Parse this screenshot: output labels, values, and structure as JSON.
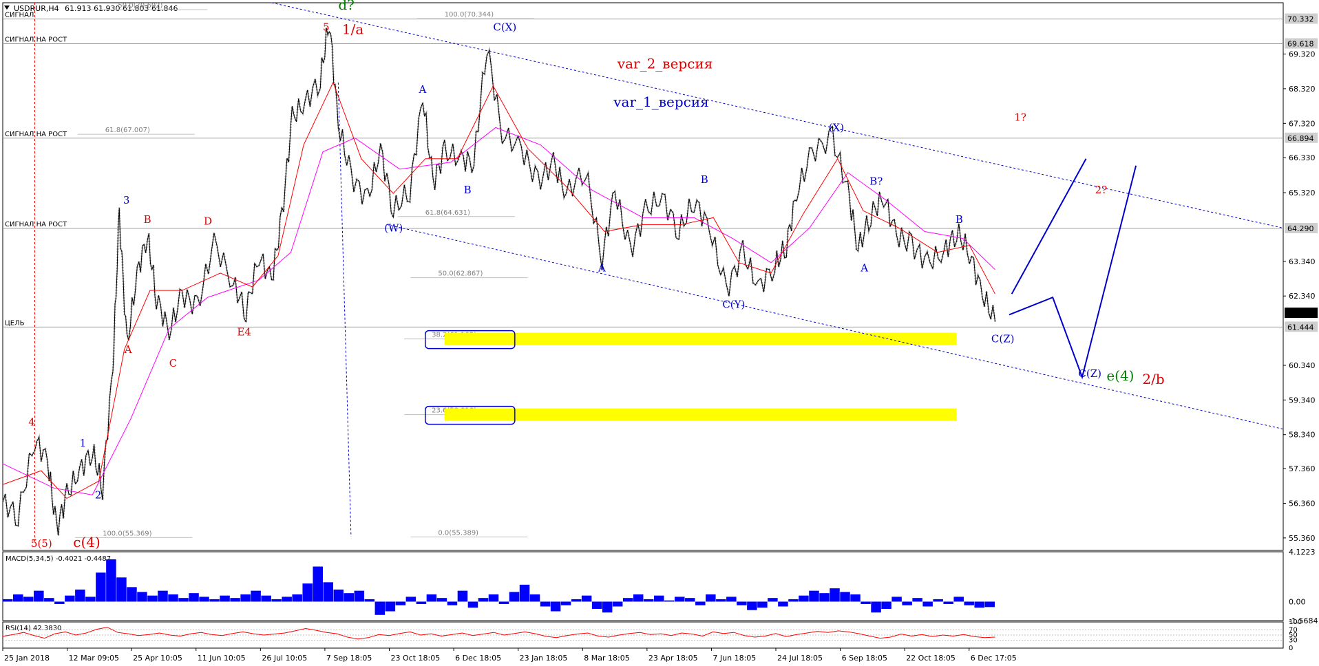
{
  "header": {
    "symbol": "USDRUR,H4",
    "ohlc": "61.913 61.930 61.803 61.846"
  },
  "colors": {
    "price": "#000000",
    "ma_fast": "#ff0000",
    "ma_slow": "#ff00ff",
    "ma_dots": "#b0b0b0",
    "wave_blue": "#0000cc",
    "wave_red": "#e00000",
    "wave_green": "#008000",
    "zone": "#ffff00",
    "macd": "#0000ff",
    "rsi": "#ff0000",
    "fib_grey": "#808080"
  },
  "chart_data": [
    {
      "type": "line",
      "panel": "main",
      "ylim": [
        55.0,
        70.8
      ],
      "x_ticks": [
        "25 Jan 2018",
        "12 Mar 09:05",
        "25 Apr 10:05",
        "11 Jun 10:05",
        "26 Jul 10:05",
        "7 Sep 18:05",
        "23 Oct 18:05",
        "6 Dec 18:05",
        "23 Jan 18:05",
        "8 Mar 18:05",
        "23 Apr 18:05",
        "7 Jun 18:05",
        "24 Jul 18:05",
        "6 Sep 18:05",
        "22 Oct 18:05",
        "6 Dec 17:05"
      ],
      "y_ticks": [
        "69.320",
        "68.320",
        "67.320",
        "66.330",
        "65.320",
        "63.340",
        "62.340",
        "60.340",
        "59.340",
        "58.340",
        "57.360",
        "56.360",
        "55.360"
      ],
      "price_labels": [
        {
          "value": 70.332,
          "text": "70.332",
          "style": "grey"
        },
        {
          "value": 69.618,
          "text": "69.618",
          "style": "grey"
        },
        {
          "value": 66.894,
          "text": "66.894",
          "style": "grey"
        },
        {
          "value": 64.29,
          "text": "64.290",
          "style": "grey"
        },
        {
          "value": 61.846,
          "text": "61.846",
          "style": "black"
        },
        {
          "value": 61.444,
          "text": "61.444",
          "style": "grey"
        }
      ],
      "horizontal_levels": [
        {
          "value": 70.332,
          "label": "СИГНАЛ"
        },
        {
          "value": 69.618,
          "label": "СИГНАЛ НА РОСТ"
        },
        {
          "value": 66.894,
          "label": "СИГНАЛ НА РОСТ"
        },
        {
          "value": 64.29,
          "label": "СИГНАЛ НА РОСТ"
        },
        {
          "value": 61.444,
          "label": "ЦЕЛЬ"
        }
      ],
      "fib_labels": [
        {
          "text": "50.0(70.602)",
          "value": 70.602
        },
        {
          "text": "100.0(70.344)",
          "value": 70.344
        },
        {
          "text": "61.8(67.007)",
          "value": 67.007
        },
        {
          "text": "61.8(64.631)",
          "value": 64.631
        },
        {
          "text": "50.0(62.867)",
          "value": 62.867
        },
        {
          "text": "38.2(61.102)",
          "value": 61.102
        },
        {
          "text": "23.6(58.918)",
          "value": 58.918
        },
        {
          "text": "100.0(55.369)",
          "value": 55.369
        },
        {
          "text": "0.0(55.389)",
          "value": 55.389
        }
      ],
      "price_series": [
        {
          "t": 0.0,
          "v": 56.4
        },
        {
          "t": 0.012,
          "v": 56.0
        },
        {
          "t": 0.025,
          "v": 58.2
        },
        {
          "t": 0.035,
          "v": 57.6
        },
        {
          "t": 0.042,
          "v": 55.6
        },
        {
          "t": 0.05,
          "v": 56.6
        },
        {
          "t": 0.06,
          "v": 57.3
        },
        {
          "t": 0.07,
          "v": 57.9
        },
        {
          "t": 0.078,
          "v": 56.8
        },
        {
          "t": 0.086,
          "v": 60.3
        },
        {
          "t": 0.091,
          "v": 64.7
        },
        {
          "t": 0.097,
          "v": 60.9
        },
        {
          "t": 0.105,
          "v": 63.0
        },
        {
          "t": 0.113,
          "v": 64.1
        },
        {
          "t": 0.12,
          "v": 62.3
        },
        {
          "t": 0.13,
          "v": 61.3
        },
        {
          "t": 0.14,
          "v": 62.4
        },
        {
          "t": 0.152,
          "v": 62.0
        },
        {
          "t": 0.165,
          "v": 63.9
        },
        {
          "t": 0.18,
          "v": 62.7
        },
        {
          "t": 0.19,
          "v": 61.9
        },
        {
          "t": 0.2,
          "v": 63.5
        },
        {
          "t": 0.21,
          "v": 62.8
        },
        {
          "t": 0.218,
          "v": 64.6
        },
        {
          "t": 0.226,
          "v": 67.5
        },
        {
          "t": 0.236,
          "v": 67.9
        },
        {
          "t": 0.248,
          "v": 68.6
        },
        {
          "t": 0.255,
          "v": 70.3
        },
        {
          "t": 0.262,
          "v": 67.3
        },
        {
          "t": 0.272,
          "v": 65.8
        },
        {
          "t": 0.285,
          "v": 65.1
        },
        {
          "t": 0.295,
          "v": 66.6
        },
        {
          "t": 0.305,
          "v": 64.8
        },
        {
          "t": 0.318,
          "v": 65.4
        },
        {
          "t": 0.328,
          "v": 68.1
        },
        {
          "t": 0.336,
          "v": 65.6
        },
        {
          "t": 0.345,
          "v": 66.5
        },
        {
          "t": 0.358,
          "v": 66.3
        },
        {
          "t": 0.368,
          "v": 66.2
        },
        {
          "t": 0.378,
          "v": 69.6
        },
        {
          "t": 0.39,
          "v": 67.0
        },
        {
          "t": 0.405,
          "v": 66.6
        },
        {
          "t": 0.418,
          "v": 65.6
        },
        {
          "t": 0.43,
          "v": 66.2
        },
        {
          "t": 0.44,
          "v": 65.3
        },
        {
          "t": 0.455,
          "v": 66.0
        },
        {
          "t": 0.468,
          "v": 63.4
        },
        {
          "t": 0.478,
          "v": 65.4
        },
        {
          "t": 0.49,
          "v": 63.6
        },
        {
          "t": 0.502,
          "v": 64.8
        },
        {
          "t": 0.515,
          "v": 65.2
        },
        {
          "t": 0.528,
          "v": 64.2
        },
        {
          "t": 0.54,
          "v": 65.1
        },
        {
          "t": 0.552,
          "v": 64.3
        },
        {
          "t": 0.565,
          "v": 62.5
        },
        {
          "t": 0.578,
          "v": 63.6
        },
        {
          "t": 0.59,
          "v": 62.6
        },
        {
          "t": 0.603,
          "v": 63.2
        },
        {
          "t": 0.612,
          "v": 63.8
        },
        {
          "t": 0.62,
          "v": 65.3
        },
        {
          "t": 0.632,
          "v": 66.5
        },
        {
          "t": 0.648,
          "v": 66.9
        },
        {
          "t": 0.66,
          "v": 65.4
        },
        {
          "t": 0.668,
          "v": 63.7
        },
        {
          "t": 0.678,
          "v": 64.7
        },
        {
          "t": 0.688,
          "v": 65.2
        },
        {
          "t": 0.698,
          "v": 64.1
        },
        {
          "t": 0.71,
          "v": 63.8
        },
        {
          "t": 0.722,
          "v": 63.3
        },
        {
          "t": 0.735,
          "v": 63.6
        },
        {
          "t": 0.745,
          "v": 64.2
        },
        {
          "t": 0.755,
          "v": 63.6
        },
        {
          "t": 0.765,
          "v": 62.4
        },
        {
          "t": 0.775,
          "v": 61.6
        }
      ],
      "ma_fast": [
        {
          "t": 0.0,
          "v": 56.9
        },
        {
          "t": 0.03,
          "v": 57.3
        },
        {
          "t": 0.05,
          "v": 56.5
        },
        {
          "t": 0.075,
          "v": 57.0
        },
        {
          "t": 0.095,
          "v": 60.8
        },
        {
          "t": 0.115,
          "v": 62.5
        },
        {
          "t": 0.14,
          "v": 62.5
        },
        {
          "t": 0.17,
          "v": 63.0
        },
        {
          "t": 0.195,
          "v": 62.6
        },
        {
          "t": 0.215,
          "v": 63.5
        },
        {
          "t": 0.235,
          "v": 66.7
        },
        {
          "t": 0.258,
          "v": 68.5
        },
        {
          "t": 0.28,
          "v": 66.3
        },
        {
          "t": 0.305,
          "v": 65.3
        },
        {
          "t": 0.33,
          "v": 66.3
        },
        {
          "t": 0.355,
          "v": 66.3
        },
        {
          "t": 0.383,
          "v": 68.4
        },
        {
          "t": 0.41,
          "v": 66.6
        },
        {
          "t": 0.44,
          "v": 65.5
        },
        {
          "t": 0.47,
          "v": 64.2
        },
        {
          "t": 0.5,
          "v": 64.4
        },
        {
          "t": 0.53,
          "v": 64.4
        },
        {
          "t": 0.555,
          "v": 64.6
        },
        {
          "t": 0.575,
          "v": 63.3
        },
        {
          "t": 0.6,
          "v": 63.0
        },
        {
          "t": 0.625,
          "v": 64.7
        },
        {
          "t": 0.652,
          "v": 66.3
        },
        {
          "t": 0.672,
          "v": 64.8
        },
        {
          "t": 0.7,
          "v": 64.3
        },
        {
          "t": 0.73,
          "v": 63.6
        },
        {
          "t": 0.755,
          "v": 63.8
        },
        {
          "t": 0.775,
          "v": 62.4
        }
      ],
      "ma_slow": [
        {
          "t": 0.0,
          "v": 57.5
        },
        {
          "t": 0.04,
          "v": 56.8
        },
        {
          "t": 0.07,
          "v": 56.6
        },
        {
          "t": 0.1,
          "v": 58.8
        },
        {
          "t": 0.13,
          "v": 61.4
        },
        {
          "t": 0.16,
          "v": 62.3
        },
        {
          "t": 0.2,
          "v": 62.8
        },
        {
          "t": 0.225,
          "v": 63.6
        },
        {
          "t": 0.25,
          "v": 66.5
        },
        {
          "t": 0.275,
          "v": 66.9
        },
        {
          "t": 0.31,
          "v": 66.0
        },
        {
          "t": 0.35,
          "v": 66.2
        },
        {
          "t": 0.385,
          "v": 67.2
        },
        {
          "t": 0.42,
          "v": 66.7
        },
        {
          "t": 0.46,
          "v": 65.4
        },
        {
          "t": 0.5,
          "v": 64.6
        },
        {
          "t": 0.54,
          "v": 64.6
        },
        {
          "t": 0.57,
          "v": 64.0
        },
        {
          "t": 0.6,
          "v": 63.3
        },
        {
          "t": 0.63,
          "v": 64.3
        },
        {
          "t": 0.66,
          "v": 65.9
        },
        {
          "t": 0.69,
          "v": 65.1
        },
        {
          "t": 0.72,
          "v": 64.2
        },
        {
          "t": 0.75,
          "v": 64.0
        },
        {
          "t": 0.775,
          "v": 63.1
        }
      ],
      "wave_labels": [
        {
          "text": "d?",
          "t": 0.262,
          "v": 70.6,
          "color": "green",
          "size": "big"
        },
        {
          "text": "5",
          "t": 0.25,
          "v": 70.0,
          "color": "red",
          "size": "small"
        },
        {
          "text": "1/a",
          "t": 0.265,
          "v": 69.9,
          "color": "red",
          "size": "big"
        },
        {
          "text": "C(X)",
          "t": 0.383,
          "v": 70.0,
          "color": "blue",
          "size": "small"
        },
        {
          "text": "var_2_версия",
          "t": 0.48,
          "v": 68.9,
          "color": "red",
          "size": "big"
        },
        {
          "text": "var_1_версия",
          "t": 0.477,
          "v": 67.8,
          "color": "blue",
          "size": "big"
        },
        {
          "text": "(X)",
          "t": 0.645,
          "v": 67.1,
          "color": "blue",
          "size": "small"
        },
        {
          "text": "1?",
          "t": 0.79,
          "v": 67.4,
          "color": "red",
          "size": "small"
        },
        {
          "text": "2?",
          "t": 0.853,
          "v": 65.3,
          "color": "red",
          "size": "small"
        },
        {
          "text": "B?",
          "t": 0.677,
          "v": 65.55,
          "color": "blue",
          "size": "small"
        },
        {
          "text": "B",
          "t": 0.744,
          "v": 64.45,
          "color": "blue",
          "size": "small"
        },
        {
          "text": "A",
          "t": 0.67,
          "v": 63.05,
          "color": "blue",
          "size": "small"
        },
        {
          "text": "C(Z)",
          "t": 0.772,
          "v": 61.0,
          "color": "blue",
          "size": "small"
        },
        {
          "text": "C(Z)",
          "t": 0.84,
          "v": 60.0,
          "color": "blue",
          "size": "small"
        },
        {
          "text": "e(4)",
          "t": 0.862,
          "v": 59.9,
          "color": "green",
          "size": "big"
        },
        {
          "text": "2/b",
          "t": 0.89,
          "v": 59.8,
          "color": "red",
          "size": "big"
        },
        {
          "text": "A",
          "t": 0.325,
          "v": 68.2,
          "color": "blue",
          "size": "small"
        },
        {
          "text": "B",
          "t": 0.36,
          "v": 65.3,
          "color": "blue",
          "size": "small"
        },
        {
          "text": "(W)",
          "t": 0.298,
          "v": 64.2,
          "color": "blue",
          "size": "small"
        },
        {
          "text": "B",
          "t": 0.545,
          "v": 65.6,
          "color": "blue",
          "size": "small"
        },
        {
          "text": "A",
          "t": 0.465,
          "v": 63.05,
          "color": "blue",
          "size": "small"
        },
        {
          "text": "C(Y)",
          "t": 0.562,
          "v": 62.0,
          "color": "blue",
          "size": "small"
        },
        {
          "text": "3",
          "t": 0.094,
          "v": 65.0,
          "color": "blue",
          "size": "small"
        },
        {
          "text": "1",
          "t": 0.06,
          "v": 58.0,
          "color": "blue",
          "size": "small"
        },
        {
          "text": "2",
          "t": 0.072,
          "v": 56.5,
          "color": "blue",
          "size": "small"
        },
        {
          "text": "4",
          "t": 0.02,
          "v": 58.6,
          "color": "red",
          "size": "small"
        },
        {
          "text": "B",
          "t": 0.11,
          "v": 64.45,
          "color": "red",
          "size": "small"
        },
        {
          "text": "D",
          "t": 0.157,
          "v": 64.4,
          "color": "red",
          "size": "small"
        },
        {
          "text": "A",
          "t": 0.095,
          "v": 60.7,
          "color": "red",
          "size": "small"
        },
        {
          "text": "C",
          "t": 0.13,
          "v": 60.3,
          "color": "red",
          "size": "small"
        },
        {
          "text": "E4",
          "t": 0.183,
          "v": 61.2,
          "color": "red",
          "size": "small"
        },
        {
          "text": "5(5)",
          "t": 0.022,
          "v": 55.1,
          "color": "red",
          "size": "small"
        },
        {
          "text": "c(4)",
          "t": 0.055,
          "v": 55.1,
          "color": "red",
          "size": "big"
        }
      ]
    },
    {
      "type": "area",
      "panel": "macd",
      "label": "MACD(5,34,5) -0.4021 -0.4487",
      "ylim": [
        -1.5684,
        4.1223
      ],
      "y_ticks": [
        "4.1223",
        "0.00",
        "-1.5684"
      ],
      "values": [
        0.2,
        0.6,
        0.4,
        0.9,
        0.3,
        -0.2,
        0.5,
        1.0,
        0.4,
        2.4,
        3.5,
        2.0,
        1.2,
        0.8,
        0.5,
        0.9,
        0.6,
        0.3,
        0.7,
        0.4,
        0.2,
        0.5,
        0.3,
        0.6,
        0.9,
        0.5,
        0.2,
        0.4,
        0.6,
        1.5,
        2.9,
        1.6,
        1.0,
        0.7,
        0.9,
        0.2,
        -1.1,
        -0.8,
        -0.3,
        0.4,
        -0.2,
        0.6,
        0.3,
        -0.3,
        0.9,
        -0.5,
        0.3,
        0.6,
        -0.2,
        0.8,
        1.4,
        0.6,
        -0.4,
        -0.8,
        -0.3,
        0.2,
        0.5,
        -0.6,
        -0.9,
        -0.4,
        0.3,
        0.6,
        0.2,
        0.5,
        0.1,
        0.4,
        0.3,
        -0.3,
        0.6,
        0.2,
        0.4,
        -0.3,
        -0.7,
        -0.5,
        0.3,
        -0.4,
        0.2,
        0.5,
        0.9,
        0.7,
        1.1,
        0.8,
        0.6,
        -0.2,
        -0.9,
        -0.6,
        0.4,
        -0.3,
        0.3,
        -0.4,
        0.2,
        -0.2,
        0.4,
        -0.3,
        -0.5,
        -0.45
      ]
    },
    {
      "type": "line",
      "panel": "rsi",
      "label": "RSI(14) 42.3830",
      "ylim": [
        0,
        100
      ],
      "y_ticks": [
        "100",
        "70",
        "50",
        "30",
        "0"
      ],
      "values": [
        45,
        52,
        60,
        48,
        38,
        55,
        62,
        50,
        58,
        72,
        80,
        60,
        55,
        48,
        52,
        58,
        50,
        46,
        55,
        60,
        52,
        48,
        56,
        62,
        55,
        50,
        54,
        58,
        66,
        75,
        68,
        60,
        55,
        42,
        35,
        40,
        52,
        48,
        56,
        62,
        50,
        55,
        46,
        52,
        58,
        48,
        54,
        60,
        50,
        56,
        62,
        55,
        45,
        40,
        48,
        54,
        58,
        46,
        42,
        50,
        56,
        60,
        52,
        55,
        48,
        58,
        54,
        46,
        62,
        56,
        60,
        48,
        42,
        46,
        56,
        44,
        52,
        58,
        64,
        60,
        66,
        62,
        55,
        46,
        38,
        42,
        54,
        46,
        52,
        44,
        50,
        46,
        52,
        44,
        40,
        42
      ]
    }
  ]
}
